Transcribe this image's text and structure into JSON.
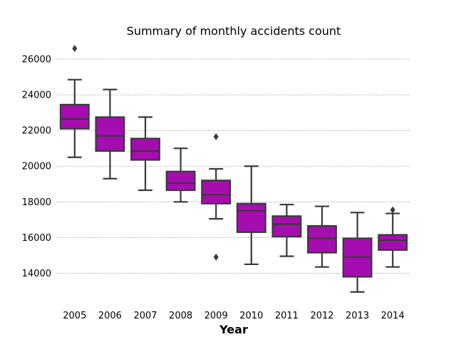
{
  "chart_data": {
    "type": "box",
    "title": "Summary of monthly accidents count",
    "xlabel": "Year",
    "ylabel": "",
    "ylim": [
      12300,
      27000
    ],
    "yticks": [
      14000,
      16000,
      18000,
      20000,
      22000,
      24000,
      26000
    ],
    "grid": "horizontal",
    "box_color": "#a60db0",
    "line_color": "#3a3a3a",
    "categories": [
      "2005",
      "2006",
      "2007",
      "2008",
      "2009",
      "2010",
      "2011",
      "2012",
      "2013",
      "2014"
    ],
    "boxes": [
      {
        "category": "2005",
        "whisker_low": 20500,
        "q1": 22100,
        "median": 22650,
        "q3": 23450,
        "whisker_high": 24850,
        "fliers": [
          26600
        ]
      },
      {
        "category": "2006",
        "whisker_low": 19300,
        "q1": 20850,
        "median": 21700,
        "q3": 22750,
        "whisker_high": 24300,
        "fliers": []
      },
      {
        "category": "2007",
        "whisker_low": 18650,
        "q1": 20350,
        "median": 20850,
        "q3": 21550,
        "whisker_high": 22750,
        "fliers": []
      },
      {
        "category": "2008",
        "whisker_low": 18000,
        "q1": 18650,
        "median": 19050,
        "q3": 19700,
        "whisker_high": 21000,
        "fliers": []
      },
      {
        "category": "2009",
        "whisker_low": 17050,
        "q1": 17900,
        "median": 18400,
        "q3": 19200,
        "whisker_high": 19850,
        "fliers": [
          21650,
          14900
        ]
      },
      {
        "category": "2010",
        "whisker_low": 14500,
        "q1": 16300,
        "median": 17500,
        "q3": 17900,
        "whisker_high": 20000,
        "fliers": []
      },
      {
        "category": "2011",
        "whisker_low": 14950,
        "q1": 16050,
        "median": 16750,
        "q3": 17200,
        "whisker_high": 17850,
        "fliers": []
      },
      {
        "category": "2012",
        "whisker_low": 14350,
        "q1": 15150,
        "median": 15950,
        "q3": 16650,
        "whisker_high": 17750,
        "fliers": []
      },
      {
        "category": "2013",
        "whisker_low": 12950,
        "q1": 13800,
        "median": 14900,
        "q3": 15950,
        "whisker_high": 17400,
        "fliers": []
      },
      {
        "category": "2014",
        "whisker_low": 14350,
        "q1": 15300,
        "median": 15850,
        "q3": 16150,
        "whisker_high": 17350,
        "fliers": [
          17550
        ]
      }
    ]
  }
}
